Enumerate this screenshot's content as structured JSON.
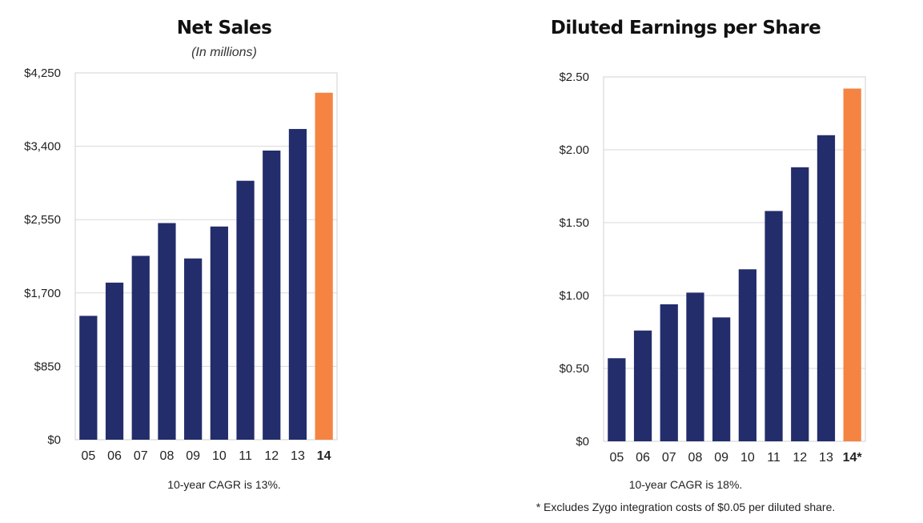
{
  "colors": {
    "bar": "#232d6b",
    "highlight": "#f58443",
    "grid": "#d9d9d9",
    "frame": "#d0d0d0"
  },
  "chart_data": [
    {
      "type": "bar",
      "title": "Net Sales",
      "subtitle": "(In millions)",
      "categories": [
        "05",
        "06",
        "07",
        "08",
        "09",
        "10",
        "11",
        "12",
        "13",
        "14"
      ],
      "values": [
        1435,
        1820,
        2130,
        2510,
        2100,
        2470,
        3000,
        3350,
        3600,
        4020
      ],
      "highlight_index": 9,
      "bold_categories": [
        9
      ],
      "yticks": [
        0,
        850,
        1700,
        2550,
        3400,
        4250
      ],
      "ytick_labels": [
        "$0",
        "$850",
        "$1,700",
        "$2,550",
        "$3,400",
        "$4,250"
      ],
      "ylim": [
        0,
        4250
      ],
      "grid": true,
      "footnote": "10-year CAGR is 13%."
    },
    {
      "type": "bar",
      "title": "Diluted Earnings per Share",
      "categories": [
        "05",
        "06",
        "07",
        "08",
        "09",
        "10",
        "11",
        "12",
        "13",
        "14*"
      ],
      "values": [
        0.57,
        0.76,
        0.94,
        1.02,
        0.85,
        1.18,
        1.58,
        1.88,
        2.1,
        2.42
      ],
      "highlight_index": 9,
      "bold_categories": [
        9
      ],
      "yticks": [
        0,
        0.5,
        1.0,
        1.5,
        2.0,
        2.5
      ],
      "ytick_labels": [
        "$0",
        "$0.50",
        "$1.00",
        "$1.50",
        "$2.00",
        "$2.50"
      ],
      "ylim": [
        0,
        2.5
      ],
      "grid": true,
      "footnote": "10-year CAGR is 18%.",
      "note": "* Excludes Zygo integration costs of $0.05 per diluted share."
    }
  ]
}
